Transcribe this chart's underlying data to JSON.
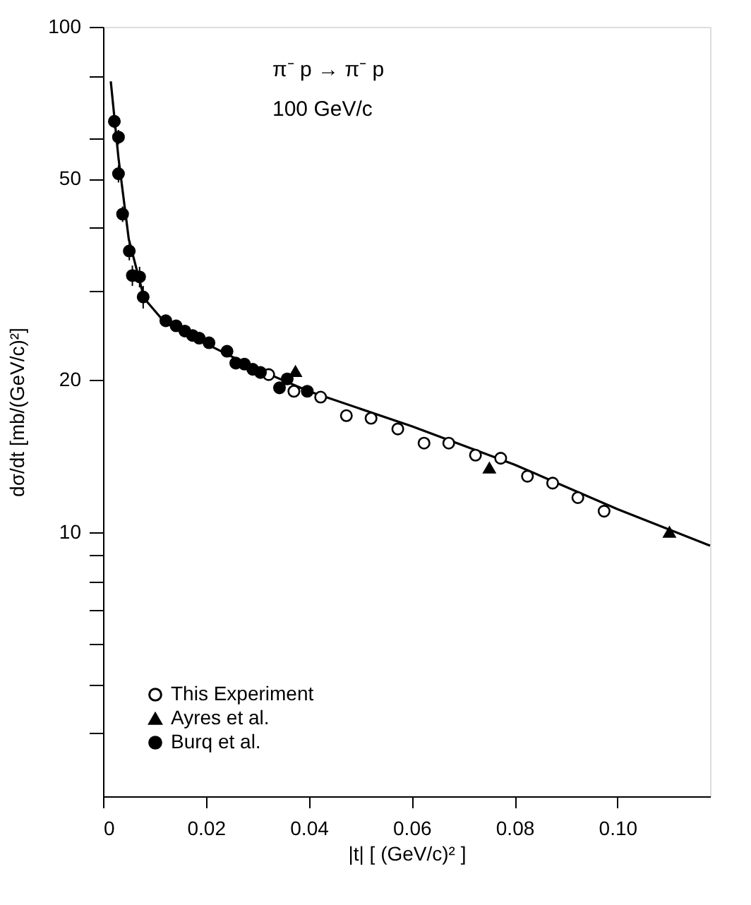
{
  "chart_data": {
    "type": "scatter",
    "xlabel": "|t|  [ (GeV/c)² ]",
    "ylabel": "dσ/dt  [mb/(GeV/c)²]",
    "annotations": [
      "π⁻ p → π⁻ p",
      "100 GeV/c"
    ],
    "log": "y",
    "grid": false,
    "legend": "bottom left",
    "xlim": [
      0,
      0.118
    ],
    "xticks": [
      {
        "value": 0,
        "label": "0"
      },
      0.02,
      0.04,
      0.06,
      0.08,
      {
        "value": 0.1,
        "label": "0.10"
      }
    ],
    "ylim": [
      3,
      100
    ],
    "yticks": [
      {
        "value": 4,
        "label": null
      },
      {
        "value": 5,
        "label": null
      },
      {
        "value": 6,
        "label": null
      },
      {
        "value": 7,
        "label": null
      },
      {
        "value": 8,
        "label": null
      },
      {
        "value": 9,
        "label": null
      },
      10,
      20,
      {
        "value": 30,
        "label": null
      },
      {
        "value": 40,
        "label": null
      },
      50,
      {
        "value": 60,
        "label": null
      },
      {
        "value": 80,
        "label": null
      },
      100
    ],
    "series": [
      {
        "name": "This Experiment",
        "marker": "circle",
        "color": "#ffffff",
        "x": [
          0.0322,
          0.0371,
          0.0423,
          0.0473,
          0.0521,
          0.0573,
          0.0624,
          0.0672,
          0.0724,
          0.0773,
          0.0825,
          0.0874,
          0.0923,
          0.0974
        ],
        "values": [
          20.5,
          19.0,
          18.5,
          17.0,
          16.8,
          16.0,
          15.0,
          15.0,
          14.2,
          14.0,
          12.9,
          12.5,
          11.7,
          11.0
        ]
      },
      {
        "name": "Ayres et al.",
        "marker": "triangle",
        "color": "#000000",
        "x": [
          0.0374,
          0.0751,
          0.1101
        ],
        "values": [
          20.8,
          13.4,
          10.0
        ]
      },
      {
        "name": "Burq et al.",
        "marker": "circle",
        "color": "#000000",
        "x": [
          0.0022,
          0.003,
          0.003,
          0.0038,
          0.0051,
          0.0057,
          0.0071,
          0.0078,
          0.0122,
          0.0142,
          0.0159,
          0.0174,
          0.0187,
          0.0206,
          0.0241,
          0.0258,
          0.0275,
          0.0291,
          0.0306,
          0.0343,
          0.0358,
          0.0397
        ],
        "values": [
          65.0,
          60.5,
          51.2,
          42.6,
          36.0,
          32.2,
          32.0,
          29.2,
          26.2,
          25.6,
          25.0,
          24.5,
          24.2,
          23.7,
          22.8,
          21.6,
          21.5,
          21.0,
          20.7,
          19.3,
          20.1,
          19.0
        ],
        "errors": [
          2,
          2,
          2,
          1.5,
          1.5,
          1.5,
          1.5,
          1.5,
          0.6,
          0.5,
          0.5,
          0.5,
          0.5,
          0.5,
          0.5,
          0.5,
          0.5,
          0.5,
          0.5,
          0.5,
          0.5,
          0.5
        ]
      },
      {
        "type": "line",
        "line_style": "solid",
        "color": "#000000",
        "x": [
          0.0015,
          0.003,
          0.005,
          0.008,
          0.012,
          0.02,
          0.03,
          0.04,
          0.06,
          0.08,
          0.1,
          0.118
        ],
        "values": [
          78,
          55,
          38,
          29,
          26,
          23.6,
          21,
          19,
          16.2,
          13.6,
          11.1,
          9.4
        ]
      }
    ]
  }
}
